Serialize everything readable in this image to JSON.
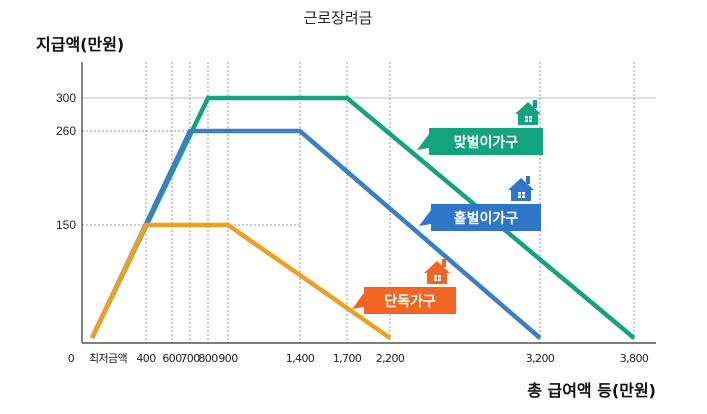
{
  "chart_data": {
    "type": "line",
    "title": "근로장려금",
    "ylabel": "지급액(만원)",
    "xlabel": "총 급여액 등(만원)",
    "xlim": [
      0,
      3800
    ],
    "ylim": [
      0,
      300
    ],
    "x_ticks": [
      {
        "value": 0,
        "label": "0"
      },
      {
        "value": 180,
        "label": "최저금액"
      },
      {
        "value": 400,
        "label": "400"
      },
      {
        "value": 600,
        "label": "600"
      },
      {
        "value": 700,
        "label": "700"
      },
      {
        "value": 800,
        "label": "800"
      },
      {
        "value": 900,
        "label": "900"
      },
      {
        "value": 1400,
        "label": "1,400"
      },
      {
        "value": 1700,
        "label": "1,700"
      },
      {
        "value": 2200,
        "label": "2,200"
      },
      {
        "value": 3200,
        "label": "3,200"
      },
      {
        "value": 3800,
        "label": "3,800"
      }
    ],
    "y_ticks": [
      {
        "value": 0,
        "label": "0"
      },
      {
        "value": 150,
        "label": "150"
      },
      {
        "value": 260,
        "label": "260"
      },
      {
        "value": 300,
        "label": "300"
      }
    ],
    "grid": "dotted guides at tick values",
    "series": [
      {
        "name": "맞벌이가구",
        "color": "#13a37f",
        "x": [
          0,
          800,
          1700,
          3800
        ],
        "y": [
          0,
          300,
          300,
          0
        ]
      },
      {
        "name": "홑벌이가구",
        "color": "#3a7fc4",
        "x": [
          0,
          700,
          1400,
          3200
        ],
        "y": [
          0,
          260,
          260,
          0
        ]
      },
      {
        "name": "단독가구",
        "color": "#f0a020",
        "x": [
          0,
          400,
          900,
          2200
        ],
        "y": [
          0,
          150,
          150,
          0
        ]
      }
    ],
    "legend_labels": [
      {
        "name": "맞벌이가구",
        "color": "#13a37f",
        "icon": "house-icon"
      },
      {
        "name": "홑벌이가구",
        "color": "#2f76c8",
        "icon": "house-icon"
      },
      {
        "name": "단독가구",
        "color": "#f26522",
        "icon": "house-icon"
      }
    ]
  }
}
